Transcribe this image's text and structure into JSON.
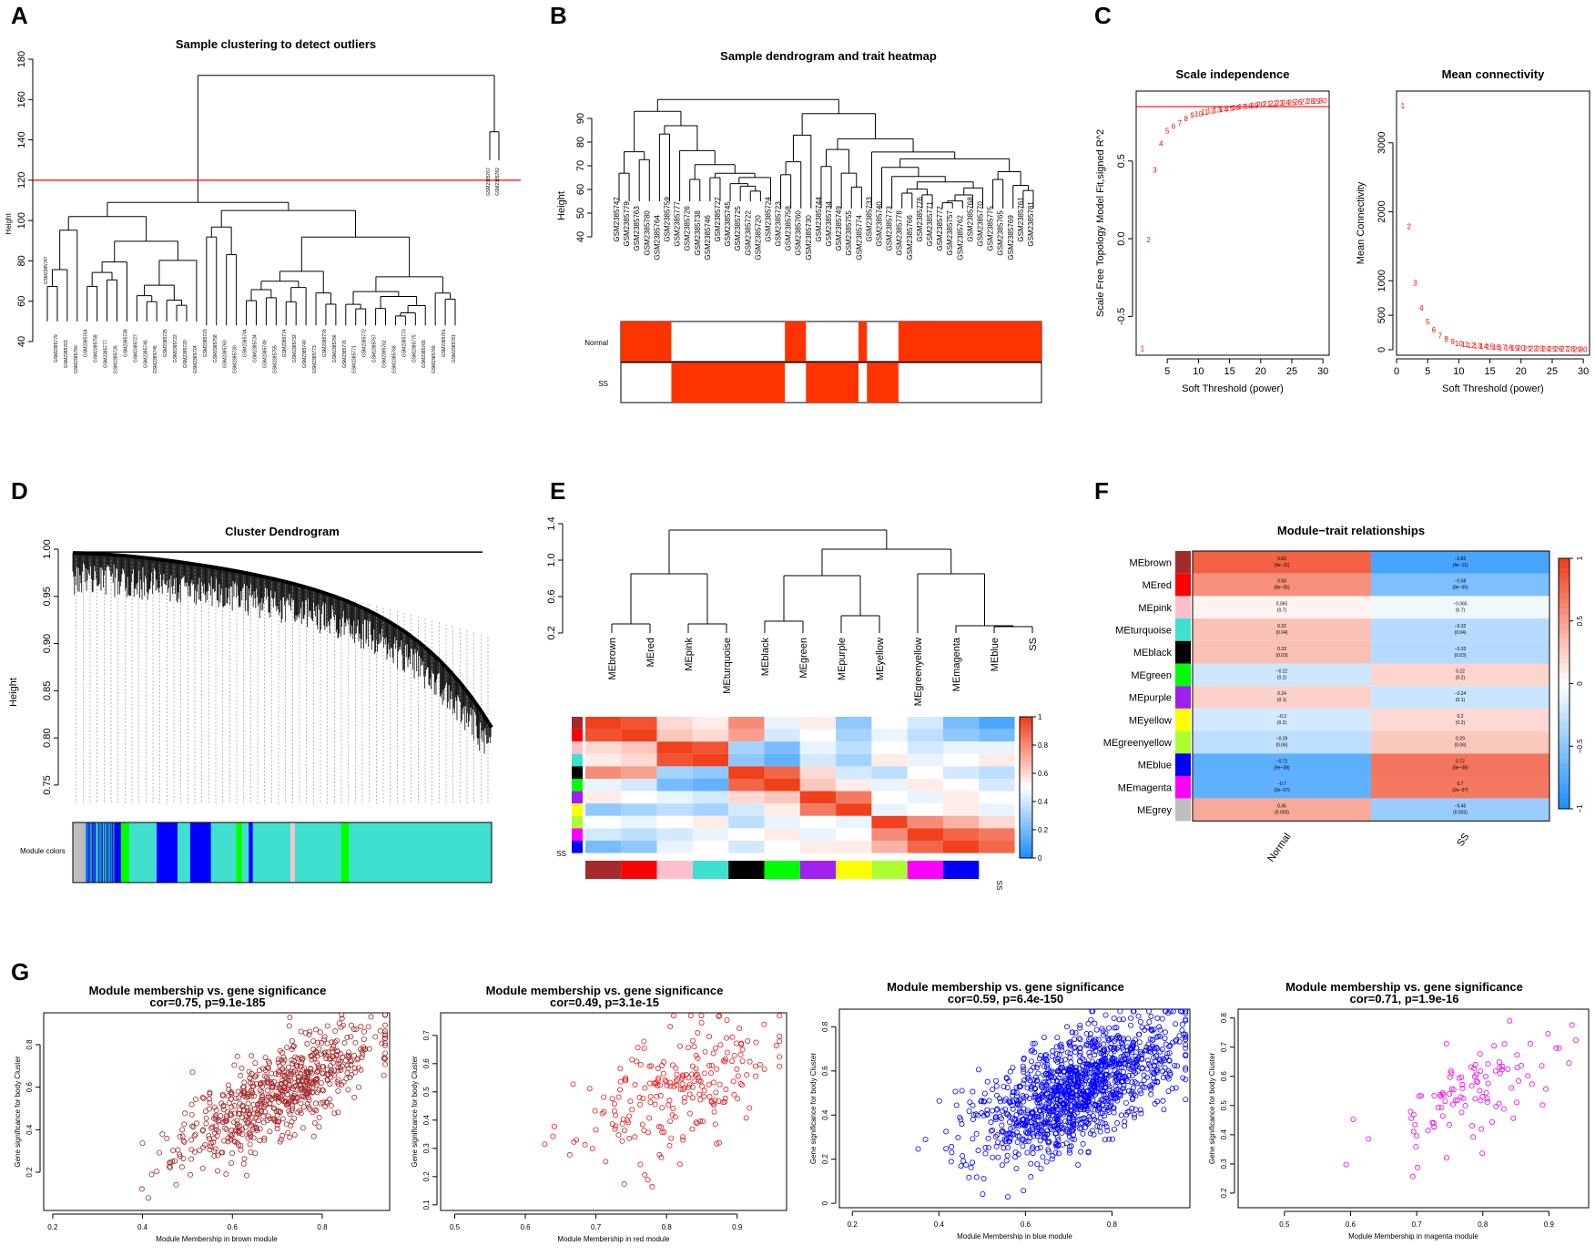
{
  "panel_labels": [
    "A",
    "B",
    "C",
    "D",
    "E",
    "F",
    "G"
  ],
  "chart_data": [
    {
      "id": "A",
      "type": "dendrogram",
      "title": "Sample clustering to detect outliers",
      "ylabel": "Height",
      "ylim": [
        40,
        180
      ],
      "yticks": [
        40,
        60,
        80,
        100,
        120,
        140,
        160,
        180
      ],
      "cut_height": 120,
      "leaves": [
        "GSM2385747",
        "GSM2385779",
        "GSM2385763",
        "GSM2385780",
        "GSM2385764",
        "GSM2385759",
        "GSM2385777",
        "GSM2385726",
        "GSM2385738",
        "GSM2385727",
        "GSM2385746",
        "GSM2385745",
        "GSM2385725",
        "GSM2385722",
        "GSM2385720",
        "GSM2385724",
        "GSM2385723",
        "GSM2385758",
        "GSM2385760",
        "GSM2385730",
        "GSM2385744",
        "GSM2385734",
        "GSM2385749",
        "GSM2385755",
        "GSM2385774",
        "GSM2385733",
        "GSM2385740",
        "GSM2385773",
        "GSM2385778",
        "GSM2385766",
        "GSM2385776",
        "GSM2385771",
        "GSM2385772",
        "GSM2385757",
        "GSM2385762",
        "GSM2385768",
        "GSM2385770",
        "GSM2385775",
        "GSM2385765",
        "GSM2385769",
        "GSM2385761",
        "GSM2385781",
        "GSM2385767",
        "GSM2385782"
      ]
    },
    {
      "id": "B",
      "type": "dendrogram_heatmap",
      "title": "Sample dendrogram and trait heatmap",
      "ylabel": "Height",
      "ylim": [
        40,
        90
      ],
      "yticks": [
        40,
        50,
        60,
        70,
        80,
        90
      ],
      "leaves": [
        "GSM2385747",
        "GSM2385779",
        "GSM2385763",
        "GSM2385780",
        "GSM2385764",
        "GSM2385759",
        "GSM2385777",
        "GSM2385726",
        "GSM2385738",
        "GSM2385746",
        "GSM2385727",
        "GSM2385745",
        "GSM2385725",
        "GSM2385722",
        "GSM2385720",
        "GSM2385724",
        "GSM2385723",
        "GSM2385758",
        "GSM2385760",
        "GSM2385730",
        "GSM2385744",
        "GSM2385734",
        "GSM2385749",
        "GSM2385755",
        "GSM2385774",
        "GSM2385733",
        "GSM2385740",
        "GSM2385773",
        "GSM2385778",
        "GSM2385766",
        "GSM2385776",
        "GSM2385771",
        "GSM2385772",
        "GSM2385757",
        "GSM2385762",
        "GSM2385768",
        "GSM2385770",
        "GSM2385775",
        "GSM2385765",
        "GSM2385769",
        "GSM2385761",
        "GSM2385781"
      ],
      "traits": [
        "Normal",
        "SS"
      ],
      "trait_color": "#ff3300",
      "normal_segments": [
        [
          0,
          0.12
        ],
        [
          0.39,
          0.44
        ],
        [
          0.565,
          0.585
        ],
        [
          0.66,
          1.0
        ]
      ],
      "ss_segments": [
        [
          0.12,
          0.39
        ],
        [
          0.44,
          0.565
        ],
        [
          0.585,
          0.66
        ]
      ]
    },
    {
      "id": "C1",
      "type": "scatter_text",
      "title": "Scale independence",
      "xlabel": "Soft Threshold (power)",
      "ylabel": "Scale Free Topology Model Fit,signed R^2",
      "xlim": [
        0,
        31
      ],
      "ylim": [
        -0.75,
        0.95
      ],
      "xticks": [
        5,
        10,
        15,
        20,
        25,
        30
      ],
      "yticks": [
        -0.5,
        0.0,
        0.5
      ],
      "yticklabels": [
        "-0.5",
        "0.0",
        "0.5"
      ],
      "hline": 0.85,
      "x": [
        1,
        2,
        3,
        4,
        5,
        6,
        7,
        8,
        9,
        10,
        11,
        12,
        13,
        14,
        15,
        16,
        17,
        18,
        19,
        20,
        21,
        22,
        23,
        24,
        25,
        26,
        27,
        28,
        29,
        30
      ],
      "y": [
        -0.7,
        0.0,
        0.45,
        0.62,
        0.7,
        0.73,
        0.75,
        0.78,
        0.8,
        0.81,
        0.82,
        0.83,
        0.835,
        0.84,
        0.845,
        0.85,
        0.855,
        0.86,
        0.865,
        0.87,
        0.875,
        0.878,
        0.88,
        0.882,
        0.884,
        0.886,
        0.888,
        0.89,
        0.892,
        0.894
      ],
      "color": "#ff0000"
    },
    {
      "id": "C2",
      "type": "scatter_text",
      "title": "Mean connectivity",
      "xlabel": "Soft Threshold (power)",
      "ylabel": "Mean Connectivity",
      "xlim": [
        0,
        31
      ],
      "ylim": [
        -80,
        3750
      ],
      "xticks": [
        0,
        5,
        10,
        15,
        20,
        25,
        30
      ],
      "yticks": [
        0,
        500,
        1000,
        2000,
        3000
      ],
      "x": [
        1,
        2,
        3,
        4,
        5,
        6,
        7,
        8,
        9,
        10,
        11,
        12,
        13,
        14,
        15,
        16,
        17,
        18,
        19,
        20,
        21,
        22,
        23,
        24,
        25,
        26,
        27,
        28,
        29,
        30
      ],
      "y": [
        3550,
        1800,
        980,
        620,
        420,
        300,
        220,
        170,
        130,
        105,
        90,
        80,
        72,
        65,
        58,
        52,
        48,
        44,
        40,
        37,
        34,
        32,
        30,
        28,
        26,
        25,
        24,
        23,
        22,
        21
      ],
      "color": "#ff0000"
    },
    {
      "id": "D",
      "type": "dendrogram_colors",
      "title": "Cluster Dendrogram",
      "ylabel": "Height",
      "ylim": [
        0.72,
        1.0
      ],
      "yticks": [
        0.75,
        0.8,
        0.85,
        0.9,
        0.95,
        1.0
      ],
      "yticklabels": [
        "0.75",
        "0.80",
        "0.85",
        "0.90",
        "0.95",
        "1.00"
      ],
      "colorbar_label": "Module colors",
      "module_segments": [
        {
          "from": 0,
          "to": 0.03,
          "color": "#bebebe"
        },
        {
          "from": 0.03,
          "to": 0.1,
          "color": "#1f8fbf"
        },
        {
          "from": 0.1,
          "to": 0.115,
          "color": "#0000ff"
        },
        {
          "from": 0.115,
          "to": 0.135,
          "color": "#00ff00"
        },
        {
          "from": 0.135,
          "to": 0.2,
          "color": "#40e0d0"
        },
        {
          "from": 0.2,
          "to": 0.25,
          "color": "#0000ff"
        },
        {
          "from": 0.25,
          "to": 0.28,
          "color": "#40e0d0"
        },
        {
          "from": 0.28,
          "to": 0.33,
          "color": "#0000ff"
        },
        {
          "from": 0.33,
          "to": 0.39,
          "color": "#40e0d0"
        },
        {
          "from": 0.39,
          "to": 0.405,
          "color": "#00ff00"
        },
        {
          "from": 0.405,
          "to": 0.42,
          "color": "#40e0d0"
        },
        {
          "from": 0.42,
          "to": 0.43,
          "color": "#0000ff"
        },
        {
          "from": 0.43,
          "to": 0.52,
          "color": "#40e0d0"
        },
        {
          "from": 0.52,
          "to": 0.53,
          "color": "#ffc0cb"
        },
        {
          "from": 0.53,
          "to": 0.64,
          "color": "#40e0d0"
        },
        {
          "from": 0.64,
          "to": 0.66,
          "color": "#00ff00"
        },
        {
          "from": 0.66,
          "to": 1.0,
          "color": "#40e0d0"
        }
      ]
    },
    {
      "id": "E",
      "type": "dendrogram_heatmap",
      "ylim": [
        0.2,
        1.4
      ],
      "yticks": [
        0.2,
        0.6,
        1.0,
        1.4
      ],
      "yticklabels": [
        "0.2",
        "0.6",
        "1.0",
        "1.4"
      ],
      "labels": [
        "MEbrown",
        "MEred",
        "MEpink",
        "MEturquoise",
        "MEblack",
        "MEgreen",
        "MEpurple",
        "MEyellow",
        "MEgreenyellow",
        "MEmagenta",
        "MEblue",
        "SS"
      ],
      "module_colors": [
        "#a52a2a",
        "#ff0000",
        "#ffc0cb",
        "#40e0d0",
        "#000000",
        "#00ff00",
        "#a020f0",
        "#ffff00",
        "#adff2f",
        "#ff00ff",
        "#0000ff"
      ],
      "colorbar_ticks": [
        "0",
        "0.2",
        "0.4",
        "0.6",
        "0.8",
        "1"
      ],
      "ss_label": "SS",
      "matrix": [
        [
          1.0,
          0.95,
          0.6,
          0.55,
          0.8,
          0.45,
          0.55,
          0.25,
          0.5,
          0.4,
          0.2,
          0.1
        ],
        [
          0.95,
          1.0,
          0.65,
          0.6,
          0.75,
          0.4,
          0.5,
          0.3,
          0.45,
          0.35,
          0.25,
          0.2
        ],
        [
          0.6,
          0.65,
          1.0,
          0.95,
          0.3,
          0.2,
          0.45,
          0.35,
          0.5,
          0.4,
          0.45,
          0.45
        ],
        [
          0.55,
          0.6,
          0.95,
          1.0,
          0.25,
          0.15,
          0.4,
          0.3,
          0.55,
          0.45,
          0.5,
          0.55
        ],
        [
          0.8,
          0.75,
          0.3,
          0.25,
          1.0,
          0.9,
          0.6,
          0.4,
          0.35,
          0.5,
          0.4,
          0.35
        ],
        [
          0.45,
          0.4,
          0.2,
          0.15,
          0.9,
          1.0,
          0.65,
          0.55,
          0.45,
          0.55,
          0.5,
          0.4
        ],
        [
          0.55,
          0.5,
          0.45,
          0.4,
          0.6,
          0.65,
          1.0,
          0.85,
          0.5,
          0.45,
          0.55,
          0.5
        ],
        [
          0.25,
          0.3,
          0.35,
          0.3,
          0.4,
          0.55,
          0.85,
          1.0,
          0.45,
          0.5,
          0.55,
          0.45
        ],
        [
          0.5,
          0.45,
          0.5,
          0.55,
          0.35,
          0.45,
          0.5,
          0.45,
          1.0,
          0.8,
          0.7,
          0.6
        ],
        [
          0.4,
          0.35,
          0.4,
          0.45,
          0.5,
          0.55,
          0.45,
          0.5,
          0.8,
          1.0,
          0.9,
          0.85
        ],
        [
          0.2,
          0.25,
          0.45,
          0.5,
          0.4,
          0.5,
          0.55,
          0.55,
          0.7,
          0.9,
          1.0,
          0.9
        ]
      ]
    },
    {
      "id": "F",
      "type": "heatmap",
      "title": "Module−trait relationships",
      "columns": [
        "Normal",
        "SS"
      ],
      "rows": [
        "MEbrown",
        "MEred",
        "MEpink",
        "MEturquoise",
        "MEblack",
        "MEgreen",
        "MEpurple",
        "MEyellow",
        "MEgreenyellow",
        "MEblue",
        "MEmagenta",
        "MEgrey"
      ],
      "row_colors": [
        "#a52a2a",
        "#ff0000",
        "#ffc0cb",
        "#40e0d0",
        "#000000",
        "#00ff00",
        "#a020f0",
        "#ffff00",
        "#adff2f",
        "#0000ff",
        "#ff00ff",
        "#bebebe"
      ],
      "normal_cor": [
        0.82,
        0.58,
        0.065,
        0.32,
        0.33,
        -0.22,
        0.24,
        -0.2,
        -0.29,
        -0.72,
        -0.7,
        0.45
      ],
      "normal_text": [
        [
          "0.82",
          "(4e−11)"
        ],
        [
          "0.58",
          "(8e−05)"
        ],
        [
          "0.065",
          "(0.7)"
        ],
        [
          "0.32",
          "(0.04)"
        ],
        [
          "0.33",
          "(0.03)"
        ],
        [
          "−0.22",
          "(0.2)"
        ],
        [
          "0.24",
          "(0.1)"
        ],
        [
          "−0.2",
          "(0.2)"
        ],
        [
          "−0.29",
          "(0.06)"
        ],
        [
          "−0.72",
          "(9e−08)"
        ],
        [
          "−0.7",
          "(2e−07)"
        ],
        [
          "0.45",
          "(0.003)"
        ]
      ],
      "ss_text": [
        [
          "−0.82",
          "(4e−11)"
        ],
        [
          "−0.58",
          "(8e−05)"
        ],
        [
          "−0.065",
          "(0.7)"
        ],
        [
          "−0.32",
          "(0.04)"
        ],
        [
          "−0.33",
          "(0.03)"
        ],
        [
          "0.22",
          "(0.2)"
        ],
        [
          "−0.24",
          "(0.1)"
        ],
        [
          "0.2",
          "(0.2)"
        ],
        [
          "0.29",
          "(0.06)"
        ],
        [
          "0.72",
          "(9e−08)"
        ],
        [
          "0.7",
          "(2e−07)"
        ],
        [
          "−0.45",
          "(0.003)"
        ]
      ],
      "colorbar_ticks": [
        "−1",
        "−0.5",
        "0",
        "0.5",
        "1"
      ]
    },
    {
      "id": "G1",
      "type": "scatter",
      "title": "Module membership vs. gene significance",
      "subtitle": "cor=0.75, p=9.1e-185",
      "xlabel": "Module Membership in brown module",
      "ylabel": "Gene significance for body Cluster",
      "xlim": [
        0.18,
        0.95
      ],
      "ylim": [
        0.02,
        0.95
      ],
      "xticks": [
        0.2,
        0.4,
        0.6,
        0.8
      ],
      "yticks": [
        0.2,
        0.4,
        0.6,
        0.8
      ],
      "color": "#a52a2a",
      "n": 700,
      "cor": 0.75,
      "seed": 11
    },
    {
      "id": "G2",
      "type": "scatter",
      "title": "Module membership vs. gene significance",
      "subtitle": "cor=0.49, p=3.1e-15",
      "xlabel": "Module Membership in red module",
      "ylabel": "Gene significance for body Cluster",
      "xlim": [
        0.48,
        0.97
      ],
      "ylim": [
        0.08,
        0.78
      ],
      "xticks": [
        0.5,
        0.6,
        0.7,
        0.8,
        0.9
      ],
      "yticks": [
        0.1,
        0.2,
        0.3,
        0.4,
        0.5,
        0.6,
        0.7
      ],
      "color": "#e41a1c",
      "n": 230,
      "cor": 0.49,
      "seed": 23
    },
    {
      "id": "G3",
      "type": "scatter",
      "title": "Module membership vs. gene significance",
      "subtitle": "cor=0.59, p=6.4e-150",
      "xlabel": "Module Membership in blue module",
      "ylabel": "Gene significance for body Cluster",
      "xlim": [
        0.17,
        0.98
      ],
      "ylim": [
        -0.02,
        0.88
      ],
      "xticks": [
        0.2,
        0.4,
        0.6,
        0.8
      ],
      "yticks": [
        0.0,
        0.2,
        0.4,
        0.6,
        0.8
      ],
      "color": "#0000ff",
      "n": 1300,
      "cor": 0.59,
      "seed": 37
    },
    {
      "id": "G4",
      "type": "scatter",
      "title": "Module membership vs. gene significance",
      "subtitle": "cor=0.71, p=1.9e-16",
      "xlabel": "Module Membership in magenta module",
      "ylabel": "Gene significance for body Cluster",
      "xlim": [
        0.43,
        0.96
      ],
      "ylim": [
        0.15,
        0.83
      ],
      "xticks": [
        0.5,
        0.6,
        0.7,
        0.8,
        0.9
      ],
      "yticks": [
        0.2,
        0.3,
        0.4,
        0.5,
        0.6,
        0.7,
        0.8
      ],
      "color": "#ee00ee",
      "n": 105,
      "cor": 0.71,
      "seed": 53
    }
  ]
}
